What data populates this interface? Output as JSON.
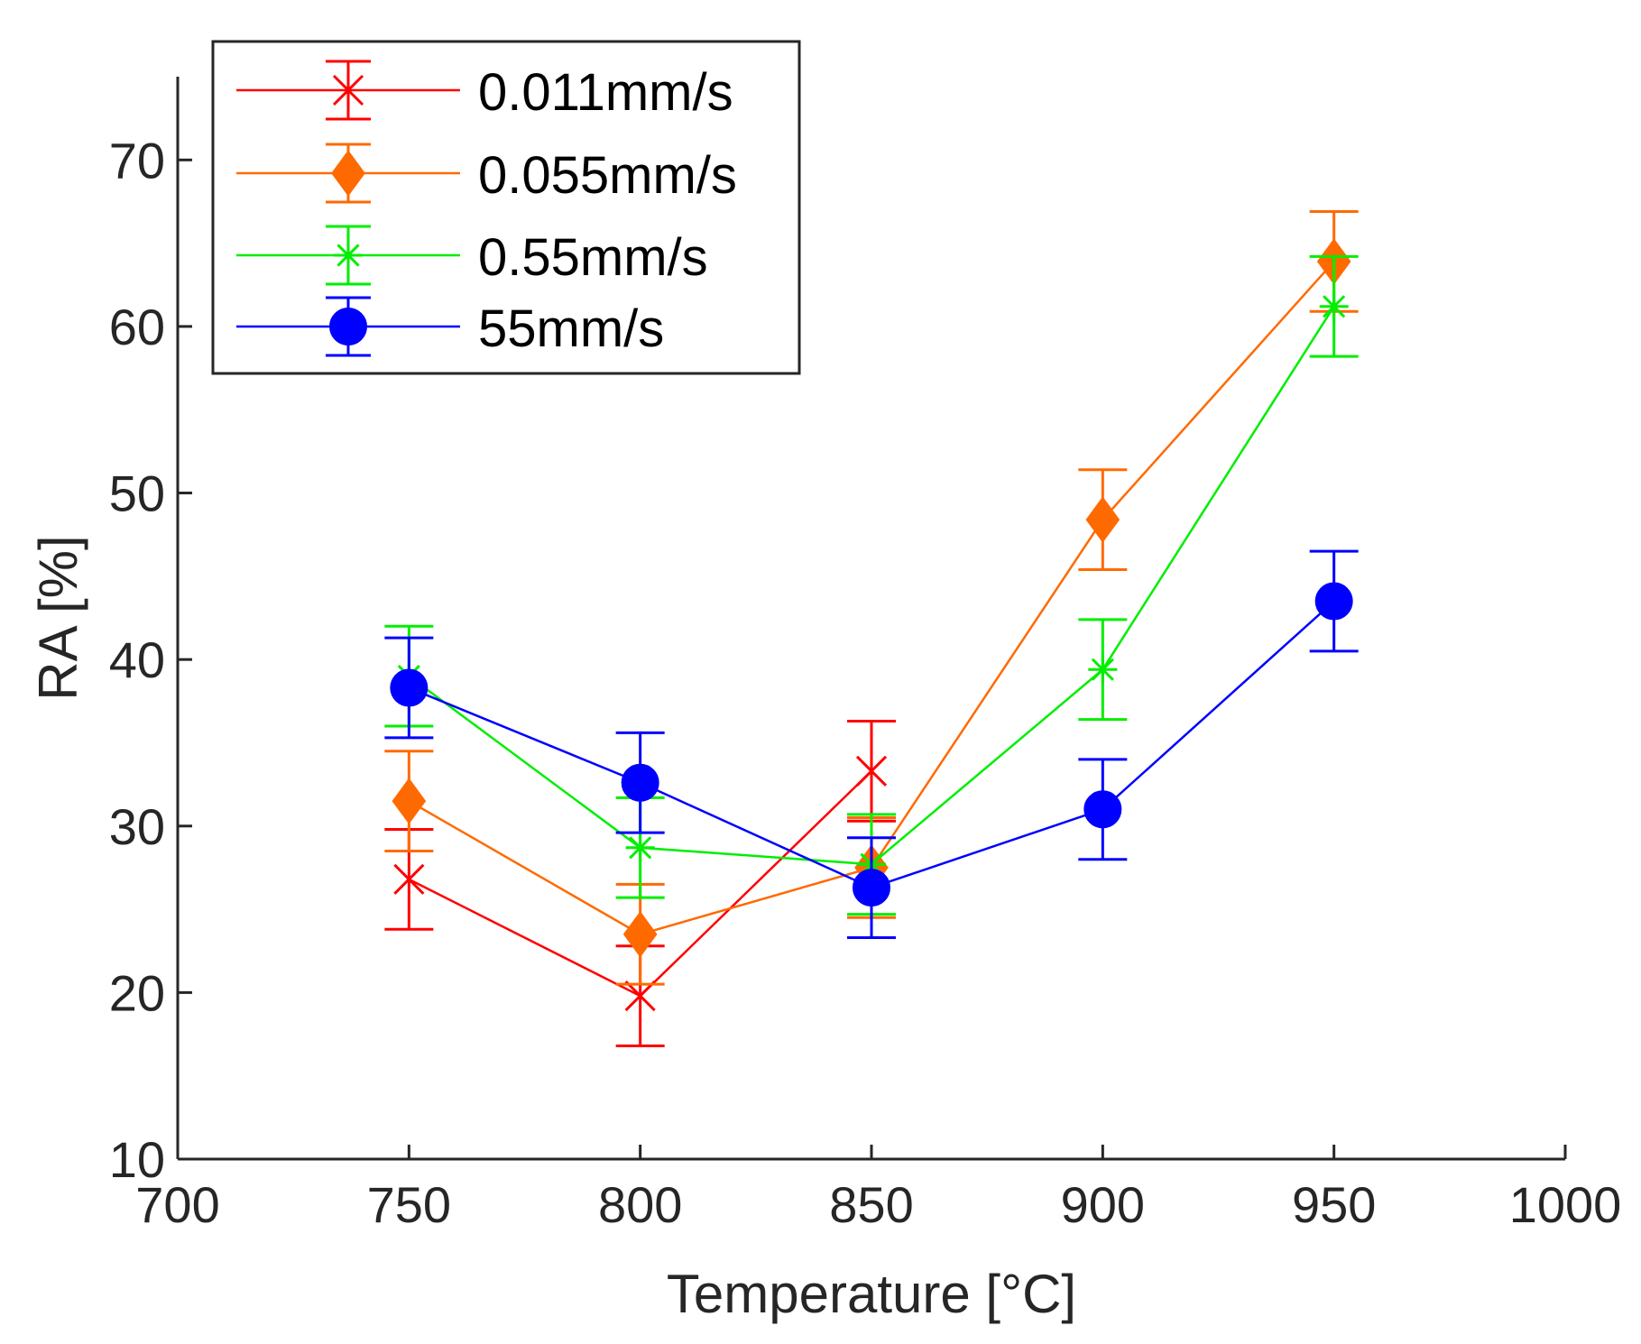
{
  "chart_data": {
    "type": "line",
    "title": "",
    "xlabel": "Temperature [°C]",
    "ylabel": "RA [%]",
    "xlim": [
      700,
      1000
    ],
    "ylim": [
      10,
      75
    ],
    "xticks": [
      700,
      750,
      800,
      850,
      900,
      950,
      1000
    ],
    "yticks": [
      10,
      20,
      30,
      40,
      50,
      60,
      70
    ],
    "grid": false,
    "legend_position": "top-left",
    "series": [
      {
        "name": "0.011mm/s",
        "color": "#ff0000",
        "marker": "x",
        "x": [
          750,
          800,
          850
        ],
        "y": [
          26.8,
          19.8,
          33.3
        ],
        "err": [
          3.0,
          3.0,
          3.0
        ]
      },
      {
        "name": "0.055mm/s",
        "color": "#ff6a00",
        "marker": "diamond",
        "x": [
          750,
          800,
          850,
          900,
          950
        ],
        "y": [
          31.5,
          23.5,
          27.5,
          48.4,
          63.9
        ],
        "err": [
          3.0,
          3.0,
          3.0,
          3.0,
          3.0
        ]
      },
      {
        "name": "0.55mm/s",
        "color": "#00ee00",
        "marker": "asterisk",
        "x": [
          750,
          800,
          850,
          900,
          950
        ],
        "y": [
          39.0,
          28.7,
          27.7,
          39.4,
          61.2
        ],
        "err": [
          3.0,
          3.0,
          3.0,
          3.0,
          3.0
        ]
      },
      {
        "name": "55mm/s",
        "color": "#0000ff",
        "marker": "circle",
        "x": [
          750,
          800,
          850,
          900,
          950
        ],
        "y": [
          38.3,
          32.6,
          26.3,
          31.0,
          43.5
        ],
        "err": [
          3.0,
          3.0,
          3.0,
          3.0,
          3.0
        ]
      }
    ]
  }
}
